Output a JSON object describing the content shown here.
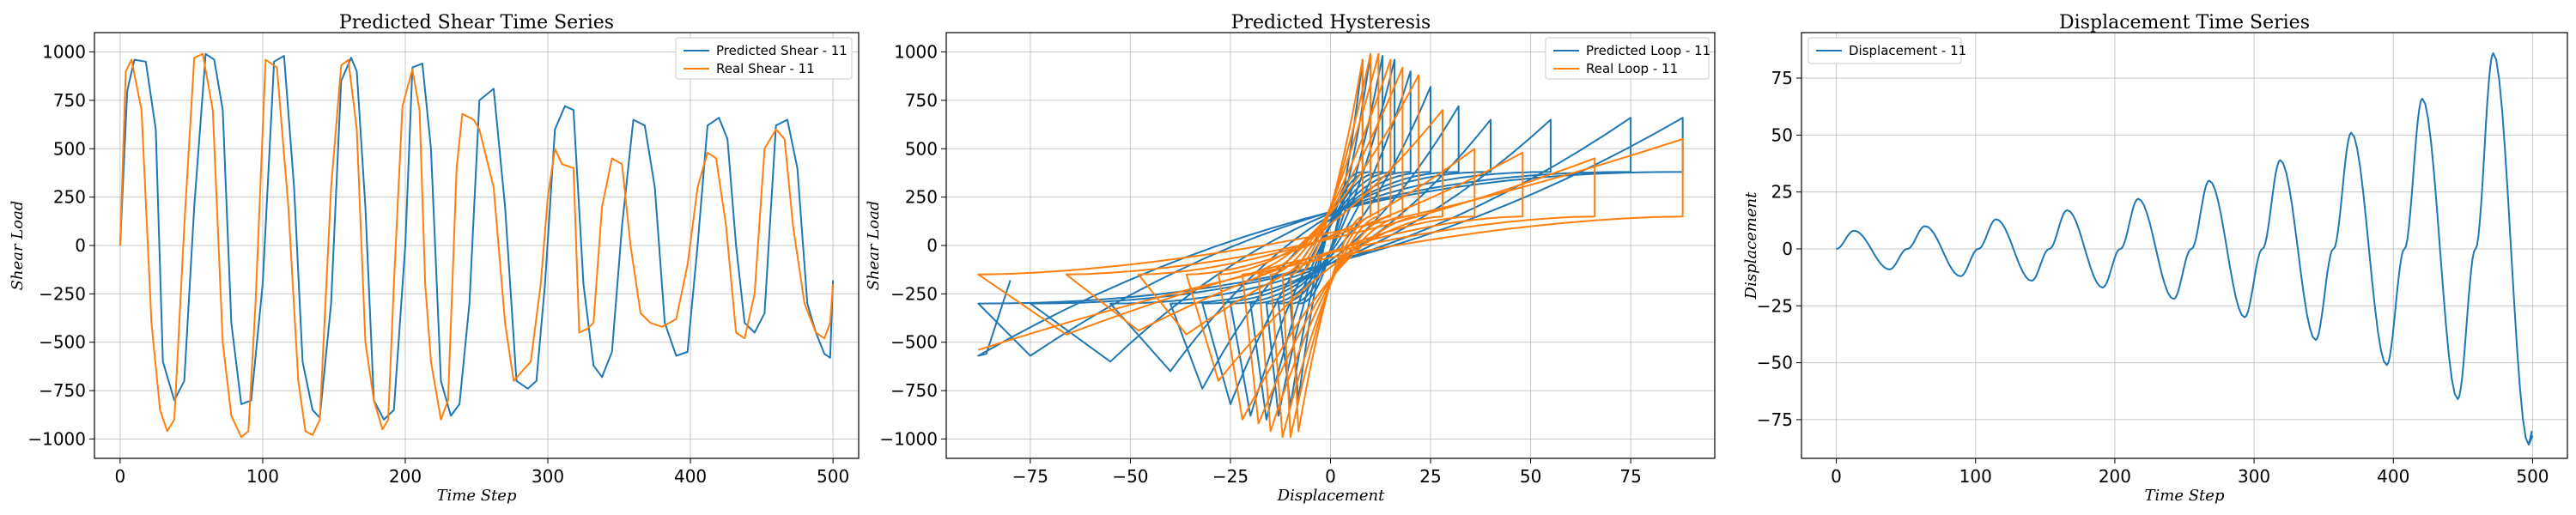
{
  "colors": {
    "blue": "#1f77b4",
    "orange": "#ff7f0e"
  },
  "chart_data": [
    {
      "type": "line",
      "title": "Predicted Shear Time Series",
      "xlabel": "Time Step",
      "ylabel": "Shear Load",
      "xlim": [
        -18,
        518
      ],
      "ylim": [
        -1100,
        1100
      ],
      "xticks": [
        0,
        100,
        200,
        300,
        400,
        500
      ],
      "yticks": [
        -1000,
        -750,
        -500,
        -250,
        0,
        250,
        500,
        750,
        1000
      ],
      "grid": true,
      "legend": "top-right",
      "series": [
        {
          "name": "Predicted Shear - 11",
          "color": "#1f77b4",
          "x": [
            0,
            5,
            10,
            18,
            25,
            30,
            38,
            45,
            52,
            60,
            66,
            72,
            78,
            85,
            92,
            100,
            108,
            115,
            122,
            128,
            135,
            140,
            148,
            155,
            162,
            166,
            172,
            178,
            185,
            192,
            200,
            205,
            212,
            218,
            225,
            232,
            238,
            245,
            252,
            262,
            270,
            278,
            286,
            292,
            298,
            305,
            312,
            318,
            325,
            332,
            338,
            345,
            352,
            360,
            368,
            375,
            382,
            390,
            398,
            405,
            412,
            420,
            426,
            432,
            438,
            445,
            452,
            460,
            468,
            475,
            482,
            488,
            494,
            498,
            500
          ],
          "y": [
            0,
            800,
            960,
            950,
            600,
            -600,
            -800,
            -700,
            200,
            990,
            960,
            700,
            -400,
            -820,
            -800,
            -200,
            950,
            980,
            300,
            -600,
            -850,
            -890,
            -300,
            850,
            970,
            900,
            200,
            -800,
            -900,
            -850,
            0,
            920,
            940,
            500,
            -700,
            -880,
            -820,
            -300,
            750,
            810,
            200,
            -700,
            -740,
            -700,
            -200,
            600,
            720,
            700,
            -200,
            -620,
            -680,
            -550,
            100,
            650,
            620,
            300,
            -400,
            -570,
            -550,
            0,
            620,
            660,
            550,
            0,
            -400,
            -450,
            -350,
            620,
            650,
            400,
            -300,
            -450,
            -560,
            -580,
            -180
          ]
        },
        {
          "name": "Real Shear - 11",
          "color": "#ff7f0e",
          "x": [
            0,
            4,
            8,
            15,
            22,
            28,
            33,
            38,
            45,
            52,
            58,
            65,
            72,
            78,
            85,
            90,
            95,
            102,
            110,
            118,
            125,
            130,
            135,
            140,
            148,
            155,
            160,
            166,
            172,
            178,
            184,
            188,
            192,
            198,
            205,
            210,
            214,
            218,
            225,
            230,
            236,
            240,
            248,
            252,
            262,
            270,
            276,
            282,
            288,
            295,
            300,
            305,
            310,
            318,
            322,
            328,
            332,
            338,
            345,
            352,
            358,
            365,
            372,
            380,
            390,
            398,
            405,
            412,
            418,
            425,
            432,
            438,
            445,
            452,
            460,
            466,
            472,
            480,
            488,
            494,
            498,
            500
          ],
          "y": [
            0,
            900,
            960,
            700,
            -400,
            -850,
            -960,
            -900,
            100,
            970,
            990,
            700,
            -500,
            -880,
            -990,
            -960,
            -300,
            960,
            920,
            200,
            -700,
            -960,
            -980,
            -900,
            300,
            930,
            960,
            600,
            -500,
            -800,
            -950,
            -900,
            -200,
            720,
            910,
            700,
            -200,
            -600,
            -900,
            -800,
            400,
            680,
            650,
            600,
            300,
            -400,
            -700,
            -650,
            -600,
            -200,
            250,
            500,
            420,
            400,
            -450,
            -430,
            -400,
            200,
            450,
            420,
            0,
            -350,
            -400,
            -420,
            -380,
            -100,
            300,
            480,
            450,
            100,
            -450,
            -480,
            -250,
            500,
            600,
            550,
            100,
            -300,
            -450,
            -480,
            -400,
            -200
          ]
        }
      ]
    },
    {
      "type": "line",
      "title": "Predicted Hysteresis",
      "xlabel": "Displacement",
      "ylabel": "Shear Load",
      "xlim": [
        -96,
        96
      ],
      "ylim": [
        -1100,
        1100
      ],
      "xticks": [
        -75,
        -50,
        -25,
        0,
        25,
        50,
        75
      ],
      "yticks": [
        -1000,
        -750,
        -500,
        -250,
        0,
        250,
        500,
        750,
        1000
      ],
      "grid": true,
      "legend": "top-right",
      "series": [
        {
          "name": "Predicted Loop - 11",
          "color": "#1f77b4",
          "amps": [
            8,
            10,
            13,
            16,
            20,
            25,
            32,
            40,
            55,
            75,
            88
          ],
          "tops": [
            960,
            990,
            980,
            960,
            900,
            820,
            720,
            650,
            650,
            660,
            660
          ],
          "bots": [
            -800,
            -830,
            -880,
            -900,
            -880,
            -820,
            -740,
            -650,
            -600,
            -570,
            -570
          ]
        },
        {
          "name": "Real Loop - 11",
          "color": "#ff7f0e",
          "amps": [
            8,
            10,
            12,
            15,
            18,
            22,
            28,
            36,
            48,
            66,
            88
          ],
          "tops": [
            960,
            990,
            990,
            960,
            920,
            880,
            700,
            500,
            480,
            450,
            550
          ],
          "bots": [
            -960,
            -990,
            -990,
            -960,
            -920,
            -900,
            -700,
            -460,
            -440,
            -460,
            -540
          ]
        }
      ]
    },
    {
      "type": "line",
      "title": "Displacement Time Series",
      "xlabel": "Time Step",
      "ylabel": "Displacement",
      "xlim": [
        -25,
        525
      ],
      "ylim": [
        -92,
        95
      ],
      "xticks": [
        0,
        100,
        200,
        300,
        400,
        500
      ],
      "yticks": [
        -75,
        -50,
        -25,
        0,
        25,
        50,
        75
      ],
      "grid": true,
      "legend": "top-left",
      "series": [
        {
          "name": "Displacement - 11",
          "color": "#1f77b4",
          "period": 51,
          "peaks": [
            8,
            10,
            13,
            17,
            22,
            30,
            39,
            51,
            66,
            86
          ],
          "troughs": [
            -9,
            -12,
            -14,
            -17,
            -22,
            -30,
            -40,
            -51,
            -66,
            -86
          ],
          "end_value": -82
        }
      ]
    }
  ]
}
